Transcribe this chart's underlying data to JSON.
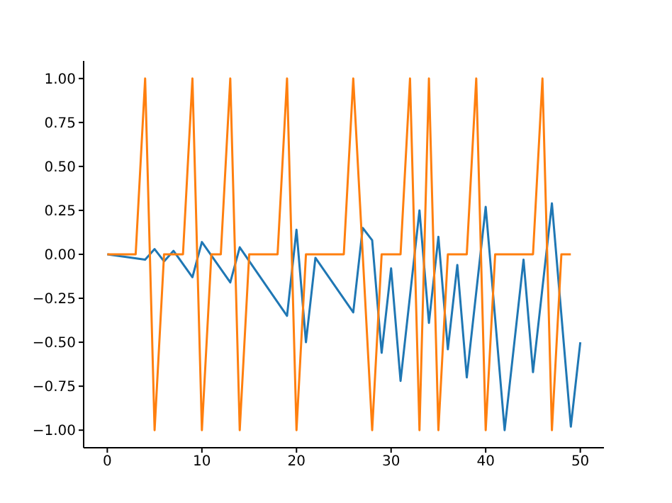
{
  "chart_data": {
    "type": "line",
    "xlim": [
      -2.5,
      52.5
    ],
    "xticks": [
      0,
      10,
      20,
      30,
      40,
      50
    ],
    "ylim": [
      -1.1,
      1.1
    ],
    "yticks": [
      {
        "value": -1,
        "label": "−1.00"
      },
      {
        "value": -0.75,
        "label": "−0.75"
      },
      {
        "value": -0.5,
        "label": "−0.50"
      },
      {
        "value": -0.25,
        "label": "−0.25"
      },
      {
        "value": 0,
        "label": "0.00"
      },
      {
        "value": 0.25,
        "label": "0.25"
      },
      {
        "value": 0.5,
        "label": "0.50"
      },
      {
        "value": 0.75,
        "label": "0.75"
      },
      {
        "value": 1,
        "label": "1.00"
      }
    ],
    "series": [
      {
        "color": "#1f77b4",
        "x": [
          0,
          4,
          5,
          6,
          7,
          9,
          10,
          13,
          14,
          19,
          20,
          21,
          22,
          26,
          27,
          28,
          29,
          30,
          31,
          33,
          34,
          35,
          36,
          37,
          38,
          40,
          42,
          44,
          45,
          47,
          49,
          50
        ],
        "values": [
          0,
          -0.03,
          0.03,
          -0.04,
          0.02,
          -0.13,
          0.07,
          -0.16,
          0.04,
          -0.35,
          0.14,
          -0.5,
          -0.02,
          -0.33,
          0.15,
          0.08,
          -0.56,
          -0.08,
          -0.72,
          0.25,
          -0.39,
          0.1,
          -0.54,
          -0.06,
          -0.7,
          0.27,
          -1,
          -0.03,
          -0.67,
          0.29,
          -0.98,
          -0.5
        ]
      },
      {
        "color": "#ff7f0e",
        "x": [
          0,
          1,
          2,
          3,
          4,
          5,
          6,
          7,
          8,
          9,
          10,
          11,
          12,
          13,
          14,
          15,
          16,
          17,
          18,
          19,
          20,
          21,
          22,
          23,
          24,
          25,
          26,
          27,
          28,
          29,
          30,
          31,
          32,
          33,
          34,
          35,
          36,
          37,
          38,
          39,
          40,
          41,
          42,
          43,
          44,
          45,
          46,
          47,
          48,
          49
        ],
        "values": [
          0,
          0,
          0,
          0,
          1,
          -1,
          0,
          0,
          0,
          1,
          -1,
          0,
          0,
          1,
          -1,
          0,
          0,
          0,
          0,
          1,
          -1,
          0,
          0,
          0,
          0,
          0,
          1,
          0,
          -1,
          0,
          0,
          0,
          1,
          -1,
          1,
          -1,
          0,
          0,
          0,
          1,
          -1,
          0,
          0,
          0,
          0,
          0,
          1,
          -1,
          0,
          0
        ]
      }
    ]
  }
}
